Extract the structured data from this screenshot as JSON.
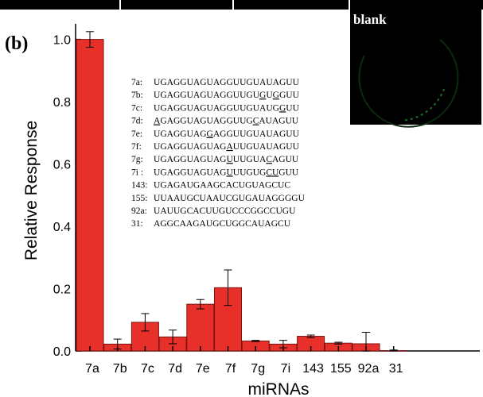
{
  "panel_label": "(b)",
  "chart_data": {
    "type": "bar",
    "categories": [
      "7a",
      "7b",
      "7c",
      "7d",
      "7e",
      "7f",
      "7g",
      "7i",
      "143",
      "155",
      "92a",
      "31"
    ],
    "values": [
      1.0,
      0.022,
      0.092,
      0.045,
      0.15,
      0.203,
      0.032,
      0.022,
      0.047,
      0.025,
      0.023,
      0.001
    ],
    "errors": [
      0.025,
      0.016,
      0.028,
      0.022,
      0.015,
      0.057,
      0.002,
      0.012,
      0.004,
      0.003,
      0.037,
      0.002
    ],
    "title": "",
    "xlabel": "miRNAs",
    "ylabel": "Relative Response",
    "ylim": [
      0,
      1.05
    ],
    "yticks": [
      "0.0",
      "0.2",
      "0.4",
      "0.6",
      "0.8",
      "1.0"
    ],
    "bar_color": "#e8302a",
    "grid": false
  },
  "inset": {
    "label": "blank",
    "background": "#000000"
  },
  "sequences": [
    {
      "label": "7a:",
      "seq": "UGAGGUAGUAGGUUGUAUAGUU",
      "underline": []
    },
    {
      "label": "7b:",
      "seq": "UGAGGUAGUAGGUUGUGUGGUU",
      "underline": [
        16,
        18
      ]
    },
    {
      "label": "7c:",
      "seq": "UGAGGUAGUAGGUUGUAUGGUU",
      "underline": [
        19
      ]
    },
    {
      "label": "7d:",
      "seq": "AGAGGUAGUAGGUUGCAUAGUU",
      "underline": [
        0,
        15
      ]
    },
    {
      "label": "7e:",
      "seq": "UGAGGUAGGAGGUUGUAUAGUU",
      "underline": [
        8
      ]
    },
    {
      "label": "7f:",
      "seq": "UGAGGUAGUAGAUUGUAUAGUU",
      "underline": [
        11
      ]
    },
    {
      "label": "7g:",
      "seq": "UGAGGUAGUAGUUUGUACAGUU",
      "underline": [
        11,
        17
      ]
    },
    {
      "label": "7i :",
      "seq": "UGAGGUAGUAGUUUGUGCUGUU",
      "underline": [
        11,
        17,
        18
      ]
    },
    {
      "label": "143:",
      "seq": "UGAGAUGAAGCACUGUAGCUC",
      "underline": []
    },
    {
      "label": "155:",
      "seq": "UUAAUGCUAAUCGUGAUAGGGGU",
      "underline": []
    },
    {
      "label": "92a:",
      "seq": "UAUUGCACUUGUCCCGGCCUGU",
      "underline": []
    },
    {
      "label": "31:",
      "seq": "AGGCAAGAUGCUGGCAUAGCU",
      "underline": []
    }
  ]
}
